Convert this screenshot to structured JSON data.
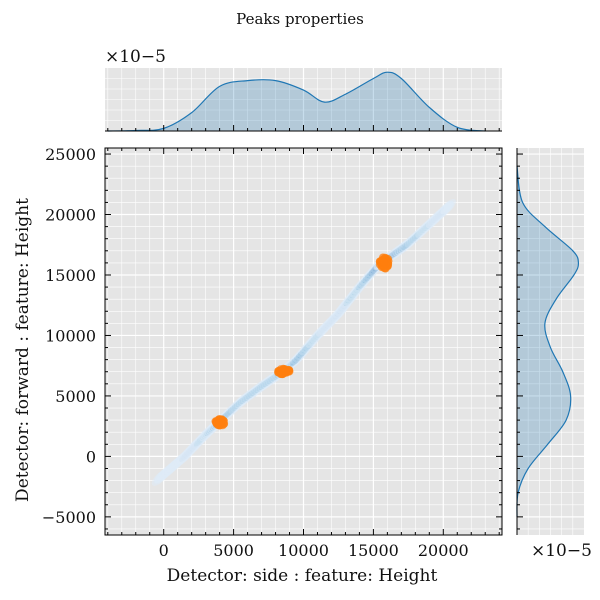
{
  "chart_data": {
    "type": "scatter",
    "title": "Peaks properties",
    "xlabel": "Detector: side : feature: Height",
    "ylabel": "Detector: forward : feature: Height",
    "xlim": [
      -4200,
      24200
    ],
    "ylim": [
      -6500,
      25500
    ],
    "xticks": [
      0,
      5000,
      10000,
      15000,
      20000
    ],
    "yticks": [
      -5000,
      0,
      5000,
      10000,
      15000,
      20000,
      25000
    ],
    "xtick_labels": [
      "0",
      "5000",
      "10000",
      "15000",
      "20000"
    ],
    "ytick_labels": [
      "−5000",
      "0",
      "5000",
      "10000",
      "15000",
      "20000",
      "25000"
    ],
    "grid": true,
    "background_color": "#e5e5e5",
    "kde_color": "#1f77b4",
    "marker_color": "#ff7f0e",
    "density_band": {
      "x": [
        -300,
        1500,
        3000,
        4000,
        5500,
        7000,
        8500,
        9500,
        11000,
        12500,
        14000,
        15500,
        16200,
        17500,
        19000,
        20500
      ],
      "y": [
        -1800,
        0,
        1800,
        2900,
        4500,
        5800,
        7000,
        8000,
        10000,
        11800,
        14000,
        16000,
        16500,
        17600,
        19200,
        20800
      ],
      "intensity": [
        0.05,
        0.15,
        0.35,
        0.7,
        0.5,
        0.45,
        0.6,
        0.7,
        0.3,
        0.2,
        0.4,
        0.9,
        0.8,
        0.6,
        0.3,
        0.1
      ]
    },
    "clusters": [
      {
        "x": 4000,
        "y": 2800,
        "spread_x": 350,
        "spread_y": 300
      },
      {
        "x": 8600,
        "y": 7000,
        "spread_x": 450,
        "spread_y": 250
      },
      {
        "x": 15800,
        "y": 16000,
        "spread_x": 350,
        "spread_y": 500
      }
    ],
    "marginal_x": {
      "scale_label": "×10−5",
      "x": [
        -4000,
        -2000,
        0,
        2000,
        4000,
        6000,
        8000,
        10000,
        11500,
        13000,
        15000,
        16000,
        17000,
        19000,
        21000,
        23000
      ],
      "density": [
        0.0,
        0.01,
        0.05,
        0.35,
        0.85,
        0.96,
        0.96,
        0.78,
        0.55,
        0.7,
        1.0,
        1.12,
        1.0,
        0.45,
        0.07,
        0.0
      ]
    },
    "marginal_y": {
      "scale_label": "×10−5",
      "y": [
        -5000,
        -3000,
        -1000,
        1000,
        3000,
        5000,
        7000,
        9000,
        11000,
        13000,
        15000,
        16000,
        17000,
        19000,
        21000,
        24000
      ],
      "density": [
        0.0,
        0.02,
        0.2,
        0.55,
        0.88,
        0.96,
        0.82,
        0.6,
        0.5,
        0.7,
        1.02,
        1.1,
        1.0,
        0.5,
        0.1,
        0.0
      ]
    }
  }
}
